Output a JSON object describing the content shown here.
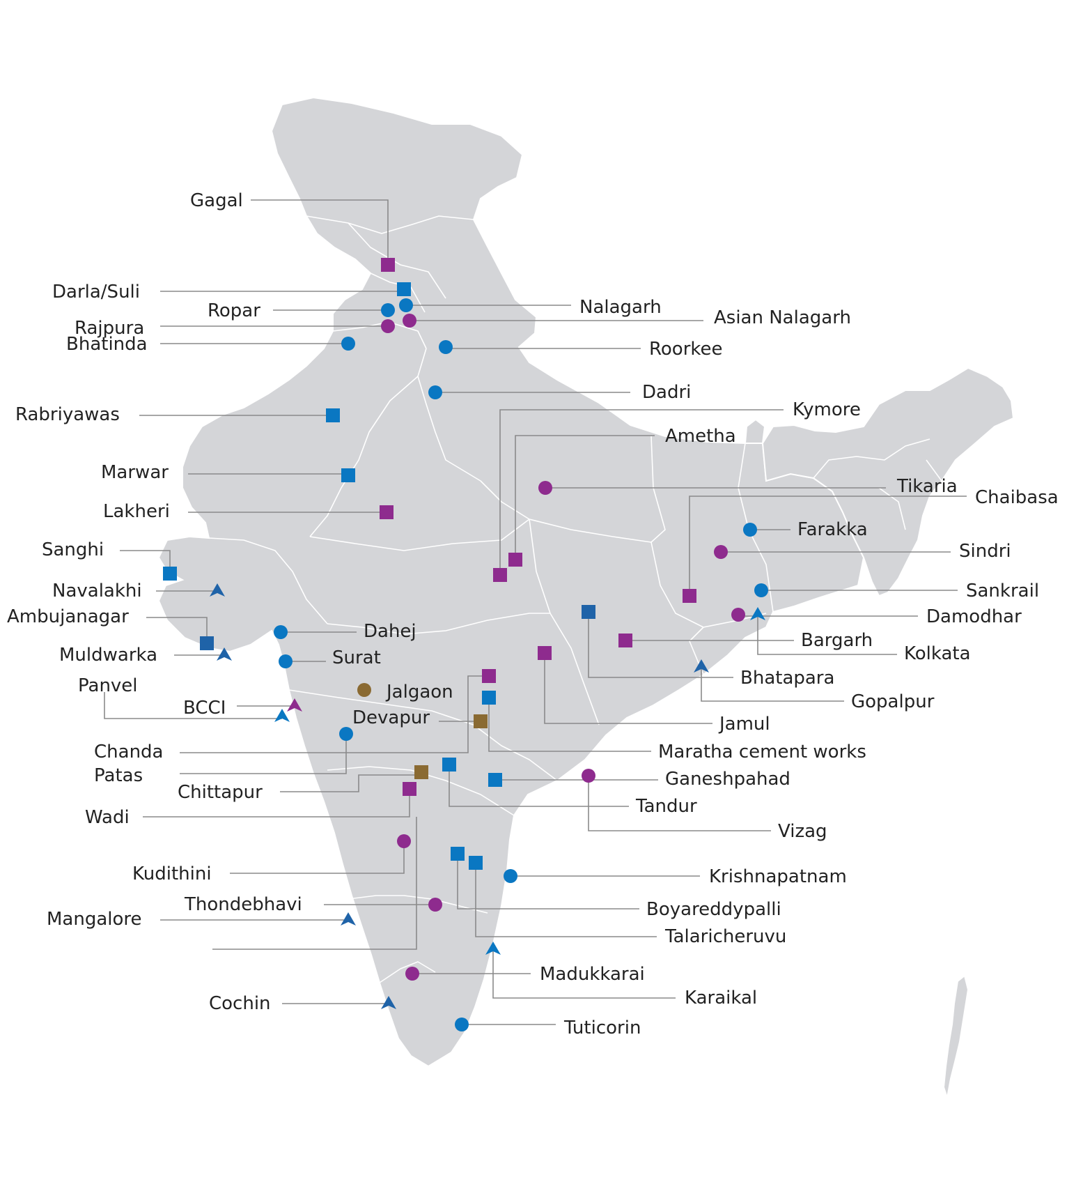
{
  "colors": {
    "land": "#d4d5d8",
    "borders": "#ffffff",
    "leader_line": "#8a8a8a",
    "label_text": "#222222",
    "blue": "#0a77c2",
    "navy": "#1f63a8",
    "purple": "#8e2b8e",
    "olive": "#8a6a32"
  },
  "locations": [
    {
      "name": "Gagal",
      "marker": "square",
      "color": "purple"
    },
    {
      "name": "Darla/Suli",
      "marker": "square",
      "color": "blue"
    },
    {
      "name": "Ropar",
      "marker": "circle",
      "color": "blue"
    },
    {
      "name": "Nalagarh",
      "marker": "circle",
      "color": "blue"
    },
    {
      "name": "Rajpura",
      "marker": "circle",
      "color": "purple"
    },
    {
      "name": "Asian Nalagarh",
      "marker": "circle",
      "color": "purple"
    },
    {
      "name": "Bhatinda",
      "marker": "circle",
      "color": "blue"
    },
    {
      "name": "Roorkee",
      "marker": "circle",
      "color": "blue"
    },
    {
      "name": "Dadri",
      "marker": "circle",
      "color": "blue"
    },
    {
      "name": "Rabriyawas",
      "marker": "square",
      "color": "blue"
    },
    {
      "name": "Kymore",
      "marker": "square",
      "color": "purple"
    },
    {
      "name": "Ametha",
      "marker": "square",
      "color": "purple"
    },
    {
      "name": "Marwar",
      "marker": "square",
      "color": "blue"
    },
    {
      "name": "Tikaria",
      "marker": "circle",
      "color": "purple"
    },
    {
      "name": "Chaibasa",
      "marker": "square",
      "color": "purple"
    },
    {
      "name": "Lakheri",
      "marker": "square",
      "color": "purple"
    },
    {
      "name": "Farakka",
      "marker": "circle",
      "color": "blue"
    },
    {
      "name": "Sanghi",
      "marker": "square",
      "color": "blue"
    },
    {
      "name": "Sindri",
      "marker": "circle",
      "color": "purple"
    },
    {
      "name": "Navalakhi",
      "marker": "triangle",
      "color": "navy"
    },
    {
      "name": "Sankrail",
      "marker": "circle",
      "color": "blue"
    },
    {
      "name": "Ambujanagar",
      "marker": "square",
      "color": "navy"
    },
    {
      "name": "Damodhar",
      "marker": "circle",
      "color": "purple"
    },
    {
      "name": "Dahej",
      "marker": "circle",
      "color": "blue"
    },
    {
      "name": "Bargarh",
      "marker": "square",
      "color": "purple"
    },
    {
      "name": "Muldwarka",
      "marker": "triangle",
      "color": "navy"
    },
    {
      "name": "Surat",
      "marker": "circle",
      "color": "blue"
    },
    {
      "name": "Kolkata",
      "marker": "triangle",
      "color": "blue"
    },
    {
      "name": "Bhatapara",
      "marker": "square",
      "color": "navy"
    },
    {
      "name": "Panvel",
      "marker": "triangle",
      "color": "blue"
    },
    {
      "name": "Jalgaon",
      "marker": "circle",
      "color": "olive"
    },
    {
      "name": "Gopalpur",
      "marker": "triangle",
      "color": "navy"
    },
    {
      "name": "BCCI",
      "marker": "triangle",
      "color": "purple"
    },
    {
      "name": "Devapur",
      "marker": "square",
      "color": "olive"
    },
    {
      "name": "Jamul",
      "marker": "square",
      "color": "purple"
    },
    {
      "name": "Chanda",
      "marker": "square",
      "color": "purple"
    },
    {
      "name": "Maratha cement works",
      "marker": "square",
      "color": "blue"
    },
    {
      "name": "Patas",
      "marker": "circle",
      "color": "blue"
    },
    {
      "name": "Ganeshpahad",
      "marker": "square",
      "color": "blue"
    },
    {
      "name": "Chittapur",
      "marker": "square",
      "color": "olive"
    },
    {
      "name": "Tandur",
      "marker": "square",
      "color": "blue"
    },
    {
      "name": "Wadi",
      "marker": "square",
      "color": "purple"
    },
    {
      "name": "Vizag",
      "marker": "circle",
      "color": "purple"
    },
    {
      "name": "Kudithini",
      "marker": "circle",
      "color": "purple"
    },
    {
      "name": "Krishnapatnam",
      "marker": "circle",
      "color": "blue"
    },
    {
      "name": "Thondebhavi",
      "marker": "circle",
      "color": "purple"
    },
    {
      "name": "Boyareddypalli",
      "marker": "square",
      "color": "blue"
    },
    {
      "name": "Mangalore",
      "marker": "triangle",
      "color": "navy"
    },
    {
      "name": "Talaricheruvu",
      "marker": "square",
      "color": "blue"
    },
    {
      "name": "Madukkarai",
      "marker": "circle",
      "color": "purple"
    },
    {
      "name": "Karaikal",
      "marker": "triangle",
      "color": "blue"
    },
    {
      "name": "Cochin",
      "marker": "triangle",
      "color": "navy"
    },
    {
      "name": "Tuticorin",
      "marker": "circle",
      "color": "blue"
    }
  ]
}
